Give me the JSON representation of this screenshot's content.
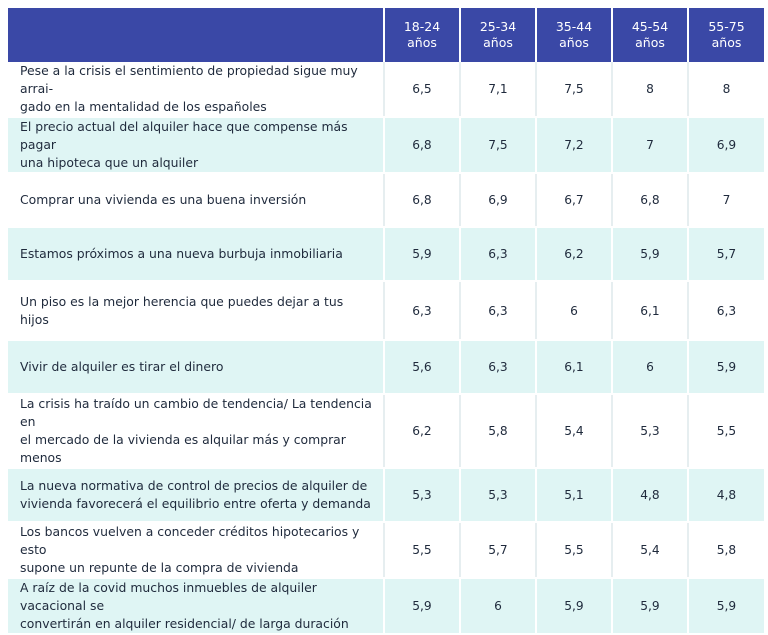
{
  "chart_data": {
    "type": "table",
    "columns": [
      "18-24 años",
      "25-34 años",
      "35-44 años",
      "45-54 años",
      "55-75 años"
    ],
    "header_lines": [
      [
        "18-24",
        "años"
      ],
      [
        "25-34",
        "años"
      ],
      [
        "35-44",
        "años"
      ],
      [
        "45-54",
        "años"
      ],
      [
        "55-75",
        "años"
      ]
    ],
    "rows": [
      {
        "statement": "Pese a la crisis el sentimiento de propiedad sigue muy arrai-gado en la mentalidad de los españoles",
        "lines": [
          "Pese a la crisis el sentimiento de propiedad sigue muy arrai-",
          "gado en la mentalidad de los españoles"
        ],
        "values": [
          "6,5",
          "7,1",
          "7,5",
          "8",
          "8"
        ]
      },
      {
        "statement": "El precio actual del alquiler hace que compense más pagar una hipoteca que un alquiler",
        "lines": [
          "El precio actual del alquiler hace que compense más pagar",
          "una hipoteca que un alquiler"
        ],
        "values": [
          "6,8",
          "7,5",
          "7,2",
          "7",
          "6,9"
        ]
      },
      {
        "statement": "Comprar una vivienda es una buena inversión",
        "lines": [
          "Comprar una vivienda es una buena inversión"
        ],
        "values": [
          "6,8",
          "6,9",
          "6,7",
          "6,8",
          "7"
        ]
      },
      {
        "statement": "Estamos próximos a una nueva burbuja inmobiliaria",
        "lines": [
          "Estamos próximos a una nueva burbuja inmobiliaria"
        ],
        "values": [
          "5,9",
          "6,3",
          "6,2",
          "5,9",
          "5,7"
        ]
      },
      {
        "statement": "Un piso es la mejor herencia que puedes dejar a tus hijos",
        "lines": [
          "Un piso es la mejor herencia que puedes dejar a tus hijos"
        ],
        "values": [
          "6,3",
          "6,3",
          "6",
          "6,1",
          "6,3"
        ]
      },
      {
        "statement": "Vivir de alquiler es tirar el dinero",
        "lines": [
          "Vivir de alquiler es tirar el dinero"
        ],
        "values": [
          "5,6",
          "6,3",
          "6,1",
          "6",
          "5,9"
        ]
      },
      {
        "statement": "La crisis ha traído un cambio de tendencia/ La tendencia en el mercado de la vivienda es alquilar más y comprar menos",
        "lines": [
          "La crisis ha traído un cambio de tendencia/ La tendencia en",
          "el mercado de la vivienda es alquilar más y comprar menos"
        ],
        "values": [
          "6,2",
          "5,8",
          "5,4",
          "5,3",
          "5,5"
        ]
      },
      {
        "statement": "La nueva normativa de control de precios de alquiler de vivienda favorecerá el equilibrio entre oferta y demanda",
        "lines": [
          "La nueva normativa de control de precios de alquiler de",
          "vivienda favorecerá el equilibrio entre oferta y demanda"
        ],
        "values": [
          "5,3",
          "5,3",
          "5,1",
          "4,8",
          "4,8"
        ]
      },
      {
        "statement": "Los bancos vuelven a conceder créditos hipotecarios y esto supone un repunte de la compra de vivienda",
        "lines": [
          "Los bancos vuelven a conceder créditos hipotecarios y esto",
          "supone un repunte de la compra de vivienda"
        ],
        "values": [
          "5,5",
          "5,7",
          "5,5",
          "5,4",
          "5,8"
        ]
      },
      {
        "statement": "A raíz de la covid muchos inmuebles de alquiler vacacional se convertirán en alquiler residencial/ de larga duración",
        "lines": [
          "A raíz de la covid muchos inmuebles de alquiler vacacional se",
          "convertirán en alquiler residencial/ de larga duración"
        ],
        "values": [
          "5,9",
          "6",
          "5,9",
          "5,9",
          "5,9"
        ]
      }
    ]
  },
  "colors": {
    "header_bg": "#3a48a6",
    "header_text": "#ffffff",
    "row_alt_bg": "#dff5f4",
    "row_bg": "#ffffff",
    "body_text": "#1f2a3c"
  }
}
